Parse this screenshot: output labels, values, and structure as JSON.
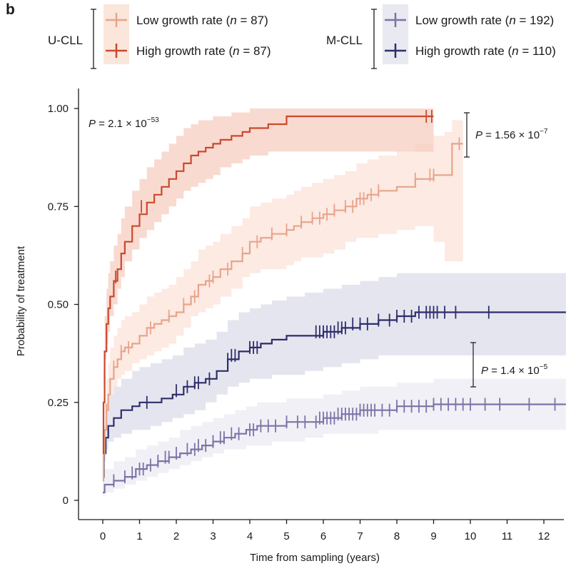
{
  "chart_data": {
    "type": "line",
    "subtype": "kaplan-meier step curves with censor ticks and confidence bands",
    "panel_label": "b",
    "xlabel": "Time from sampling (years)",
    "ylabel": "Probability of treatment",
    "xlim": [
      -0.6,
      12.6
    ],
    "ylim": [
      -0.05,
      1.05
    ],
    "xticks": [
      0,
      1,
      2,
      3,
      4,
      5,
      6,
      7,
      8,
      9,
      10,
      11,
      12
    ],
    "xtick_labels": [
      "0",
      "1",
      "2",
      "3",
      "4",
      "5",
      "6",
      "7",
      "8",
      "9",
      "10",
      "11",
      "12"
    ],
    "yticks": [
      0,
      0.25,
      0.5,
      0.75,
      1.0
    ],
    "ytick_labels": [
      "0",
      "0.25",
      "0.50",
      "0.75",
      "1.00"
    ],
    "groups": [
      {
        "name": "U-CLL",
        "legend": [
          {
            "label": "Low growth rate (",
            "n_italic": "n",
            "n_value": " = 87)",
            "series_index": 0
          },
          {
            "label": "High growth rate (",
            "n_italic": "n",
            "n_value": " = 87)",
            "series_index": 1
          }
        ]
      },
      {
        "name": "M-CLL",
        "legend": [
          {
            "label": "Low growth rate (",
            "n_italic": "n",
            "n_value": " = 192)",
            "series_index": 2
          },
          {
            "label": "High growth rate (",
            "n_italic": "n",
            "n_value": " = 110)",
            "series_index": 3
          }
        ]
      }
    ],
    "pvalues": [
      {
        "prefix": "P",
        "text": " = 2.1 × 10",
        "exp": "−53",
        "comparison": "overall"
      },
      {
        "prefix": "P",
        "text": " = 1.56 × 10",
        "exp": "−7",
        "comparison": "U-CLL high vs low"
      },
      {
        "prefix": "P",
        "text": " = 1.4 × 10",
        "exp": "−5",
        "comparison": "M-CLL high vs low"
      }
    ],
    "series": [
      {
        "name": "U-CLL Low growth rate",
        "n": 87,
        "color": "#e8a48a",
        "band_color": "#fbe3d9",
        "x": [
          0,
          0.02,
          0.05,
          0.1,
          0.15,
          0.2,
          0.3,
          0.4,
          0.5,
          0.6,
          0.8,
          1.0,
          1.2,
          1.4,
          1.6,
          1.8,
          2.0,
          2.2,
          2.4,
          2.6,
          2.8,
          3.0,
          3.2,
          3.5,
          3.8,
          4.0,
          4.3,
          4.6,
          5.0,
          5.2,
          5.4,
          5.7,
          6.0,
          6.3,
          6.6,
          6.9,
          7.2,
          7.5,
          8.0,
          8.5,
          9.0,
          9.3,
          9.5,
          9.8
        ],
        "y": [
          0.05,
          0.12,
          0.18,
          0.23,
          0.27,
          0.31,
          0.34,
          0.36,
          0.38,
          0.39,
          0.4,
          0.42,
          0.44,
          0.45,
          0.46,
          0.47,
          0.48,
          0.5,
          0.52,
          0.55,
          0.56,
          0.57,
          0.59,
          0.61,
          0.63,
          0.66,
          0.67,
          0.68,
          0.69,
          0.7,
          0.71,
          0.72,
          0.73,
          0.74,
          0.75,
          0.77,
          0.78,
          0.79,
          0.8,
          0.82,
          0.83,
          0.83,
          0.91,
          0.91
        ],
        "ci_low": [
          0.02,
          0.07,
          0.12,
          0.17,
          0.21,
          0.24,
          0.27,
          0.29,
          0.31,
          0.32,
          0.33,
          0.35,
          0.36,
          0.37,
          0.38,
          0.39,
          0.4,
          0.42,
          0.44,
          0.47,
          0.48,
          0.49,
          0.5,
          0.52,
          0.54,
          0.57,
          0.58,
          0.59,
          0.59,
          0.6,
          0.61,
          0.62,
          0.62,
          0.63,
          0.64,
          0.66,
          0.67,
          0.67,
          0.68,
          0.69,
          0.7,
          0.66,
          0.61,
          0.61
        ],
        "ci_high": [
          0.1,
          0.18,
          0.25,
          0.31,
          0.35,
          0.39,
          0.42,
          0.44,
          0.46,
          0.47,
          0.48,
          0.5,
          0.52,
          0.53,
          0.54,
          0.55,
          0.57,
          0.59,
          0.61,
          0.64,
          0.65,
          0.66,
          0.68,
          0.7,
          0.72,
          0.75,
          0.76,
          0.77,
          0.78,
          0.79,
          0.8,
          0.81,
          0.82,
          0.83,
          0.84,
          0.86,
          0.87,
          0.88,
          0.89,
          0.91,
          0.93,
          0.94,
          0.97,
          0.97
        ],
        "censor_x": [
          0.1,
          0.3,
          0.5,
          0.7,
          1.3,
          1.8,
          2.2,
          2.5,
          2.9,
          3.0,
          3.4,
          3.8,
          4.2,
          4.6,
          5.0,
          5.4,
          5.7,
          5.9,
          6.1,
          6.3,
          6.6,
          6.8,
          7.0,
          7.1,
          7.3,
          7.5,
          8.5,
          8.9,
          9.0,
          9.7
        ],
        "censor_y": [
          0.23,
          0.34,
          0.38,
          0.39,
          0.44,
          0.47,
          0.5,
          0.52,
          0.56,
          0.57,
          0.59,
          0.63,
          0.66,
          0.68,
          0.69,
          0.71,
          0.72,
          0.72,
          0.73,
          0.74,
          0.75,
          0.75,
          0.77,
          0.77,
          0.78,
          0.79,
          0.82,
          0.83,
          0.83,
          0.91
        ]
      },
      {
        "name": "U-CLL High growth rate",
        "n": 87,
        "color": "#c94a2e",
        "band_color": "#f7cec0",
        "x": [
          0,
          0.02,
          0.05,
          0.1,
          0.15,
          0.2,
          0.3,
          0.4,
          0.5,
          0.6,
          0.8,
          1.0,
          1.2,
          1.4,
          1.6,
          1.8,
          2.0,
          2.2,
          2.4,
          2.6,
          2.8,
          3.0,
          3.2,
          3.5,
          3.8,
          4.0,
          4.5,
          5.0,
          5.2,
          6.0,
          7.0,
          8.0,
          9.0
        ],
        "y": [
          0.12,
          0.25,
          0.38,
          0.45,
          0.49,
          0.52,
          0.56,
          0.59,
          0.63,
          0.66,
          0.7,
          0.73,
          0.76,
          0.78,
          0.8,
          0.82,
          0.84,
          0.86,
          0.88,
          0.89,
          0.9,
          0.91,
          0.92,
          0.93,
          0.94,
          0.95,
          0.96,
          0.98,
          0.98,
          0.98,
          0.98,
          0.98,
          0.98
        ],
        "ci_low": [
          0.06,
          0.17,
          0.29,
          0.36,
          0.4,
          0.43,
          0.47,
          0.5,
          0.54,
          0.57,
          0.61,
          0.64,
          0.67,
          0.69,
          0.71,
          0.73,
          0.75,
          0.77,
          0.79,
          0.8,
          0.81,
          0.82,
          0.83,
          0.85,
          0.86,
          0.87,
          0.88,
          0.89,
          0.89,
          0.89,
          0.89,
          0.89,
          0.89
        ],
        "ci_high": [
          0.19,
          0.33,
          0.47,
          0.54,
          0.58,
          0.61,
          0.65,
          0.68,
          0.72,
          0.75,
          0.79,
          0.82,
          0.85,
          0.87,
          0.89,
          0.91,
          0.93,
          0.95,
          0.96,
          0.97,
          0.97,
          0.98,
          0.98,
          0.99,
          0.99,
          1.0,
          1.0,
          1.0,
          1.0,
          1.0,
          1.0,
          1.0,
          1.0
        ],
        "censor_x": [
          0.35,
          1.05,
          8.8,
          8.95
        ],
        "censor_y": [
          0.57,
          0.75,
          0.98,
          0.98
        ]
      },
      {
        "name": "M-CLL Low growth rate",
        "n": 192,
        "color": "#7b74a8",
        "band_color": "#ebebf3",
        "x": [
          0,
          0.05,
          0.3,
          0.6,
          0.9,
          1.2,
          1.5,
          1.8,
          2.1,
          2.4,
          2.7,
          3.0,
          3.3,
          3.6,
          3.9,
          4.2,
          4.6,
          5.0,
          5.5,
          6.0,
          6.5,
          7.0,
          7.5,
          8.0,
          8.5,
          9.0,
          12.6
        ],
        "y": [
          0.02,
          0.04,
          0.05,
          0.06,
          0.08,
          0.09,
          0.1,
          0.11,
          0.12,
          0.13,
          0.14,
          0.15,
          0.16,
          0.17,
          0.18,
          0.19,
          0.19,
          0.2,
          0.2,
          0.21,
          0.22,
          0.23,
          0.23,
          0.24,
          0.24,
          0.245,
          0.245
        ],
        "ci_low": [
          0.0,
          0.01,
          0.02,
          0.03,
          0.04,
          0.05,
          0.06,
          0.07,
          0.08,
          0.09,
          0.1,
          0.11,
          0.12,
          0.13,
          0.13,
          0.14,
          0.14,
          0.15,
          0.15,
          0.16,
          0.17,
          0.17,
          0.17,
          0.18,
          0.18,
          0.18,
          0.18
        ],
        "ci_high": [
          0.06,
          0.08,
          0.1,
          0.11,
          0.13,
          0.14,
          0.15,
          0.16,
          0.18,
          0.19,
          0.2,
          0.21,
          0.22,
          0.23,
          0.24,
          0.25,
          0.25,
          0.26,
          0.26,
          0.27,
          0.28,
          0.29,
          0.29,
          0.3,
          0.3,
          0.31,
          0.31
        ],
        "censor_x": [
          0.3,
          0.6,
          0.8,
          1.0,
          1.1,
          1.3,
          1.5,
          1.7,
          1.8,
          2.0,
          2.3,
          2.5,
          2.6,
          2.8,
          3.0,
          3.2,
          3.3,
          3.5,
          3.7,
          4.0,
          4.1,
          4.3,
          4.5,
          4.7,
          5.0,
          5.3,
          5.5,
          5.8,
          5.9,
          6.0,
          6.1,
          6.2,
          6.3,
          6.4,
          6.5,
          6.6,
          6.7,
          6.8,
          6.9,
          7.0,
          7.1,
          7.2,
          7.3,
          7.4,
          7.6,
          7.8,
          8.0,
          8.2,
          8.4,
          8.6,
          8.8,
          9.0,
          9.2,
          9.4,
          9.6,
          9.8,
          10.0,
          10.4,
          10.8,
          11.6,
          12.3
        ],
        "censor_y": [
          0.05,
          0.06,
          0.07,
          0.08,
          0.08,
          0.09,
          0.1,
          0.11,
          0.11,
          0.12,
          0.13,
          0.13,
          0.14,
          0.14,
          0.15,
          0.16,
          0.16,
          0.17,
          0.17,
          0.18,
          0.18,
          0.19,
          0.19,
          0.19,
          0.2,
          0.2,
          0.2,
          0.2,
          0.21,
          0.21,
          0.21,
          0.21,
          0.21,
          0.22,
          0.22,
          0.22,
          0.22,
          0.22,
          0.22,
          0.23,
          0.23,
          0.23,
          0.23,
          0.23,
          0.23,
          0.23,
          0.24,
          0.24,
          0.24,
          0.24,
          0.24,
          0.245,
          0.245,
          0.245,
          0.245,
          0.245,
          0.245,
          0.245,
          0.245,
          0.245,
          0.245
        ]
      },
      {
        "name": "M-CLL High growth rate",
        "n": 110,
        "color": "#2e2d6b",
        "band_color": "#dcdce9",
        "x": [
          0,
          0.03,
          0.08,
          0.15,
          0.3,
          0.5,
          0.8,
          1.0,
          1.3,
          1.6,
          1.9,
          2.2,
          2.5,
          2.8,
          3.1,
          3.4,
          3.7,
          4.0,
          4.3,
          4.6,
          5.0,
          5.5,
          6.0,
          6.5,
          7.0,
          7.5,
          8.0,
          8.5,
          9.0,
          12.6
        ],
        "y": [
          0.06,
          0.12,
          0.16,
          0.19,
          0.21,
          0.23,
          0.24,
          0.25,
          0.25,
          0.26,
          0.27,
          0.29,
          0.3,
          0.31,
          0.33,
          0.36,
          0.38,
          0.39,
          0.4,
          0.41,
          0.42,
          0.42,
          0.43,
          0.44,
          0.45,
          0.46,
          0.47,
          0.48,
          0.48,
          0.48
        ],
        "ci_low": [
          0.02,
          0.07,
          0.1,
          0.13,
          0.15,
          0.16,
          0.17,
          0.18,
          0.18,
          0.19,
          0.2,
          0.21,
          0.22,
          0.23,
          0.25,
          0.27,
          0.29,
          0.3,
          0.31,
          0.31,
          0.32,
          0.32,
          0.33,
          0.34,
          0.35,
          0.36,
          0.37,
          0.37,
          0.37,
          0.37
        ],
        "ci_high": [
          0.12,
          0.19,
          0.23,
          0.27,
          0.29,
          0.31,
          0.33,
          0.34,
          0.35,
          0.36,
          0.37,
          0.39,
          0.4,
          0.41,
          0.43,
          0.46,
          0.48,
          0.49,
          0.5,
          0.51,
          0.52,
          0.53,
          0.54,
          0.55,
          0.56,
          0.57,
          0.58,
          0.58,
          0.58,
          0.58
        ],
        "censor_x": [
          1.2,
          2.0,
          2.3,
          2.5,
          2.6,
          2.9,
          3.4,
          3.5,
          3.6,
          4.0,
          4.1,
          4.2,
          5.8,
          5.9,
          6.0,
          6.1,
          6.2,
          6.3,
          6.4,
          6.5,
          6.6,
          6.8,
          7.0,
          7.2,
          7.5,
          7.8,
          8.0,
          8.2,
          8.4,
          8.6,
          8.8,
          8.9,
          9.0,
          9.1,
          9.3,
          9.6,
          10.5
        ],
        "censor_y": [
          0.25,
          0.28,
          0.29,
          0.3,
          0.3,
          0.31,
          0.36,
          0.37,
          0.37,
          0.39,
          0.39,
          0.39,
          0.43,
          0.43,
          0.43,
          0.43,
          0.43,
          0.43,
          0.44,
          0.44,
          0.44,
          0.45,
          0.45,
          0.45,
          0.46,
          0.46,
          0.47,
          0.47,
          0.47,
          0.48,
          0.48,
          0.48,
          0.48,
          0.48,
          0.48,
          0.48,
          0.48
        ]
      }
    ]
  }
}
